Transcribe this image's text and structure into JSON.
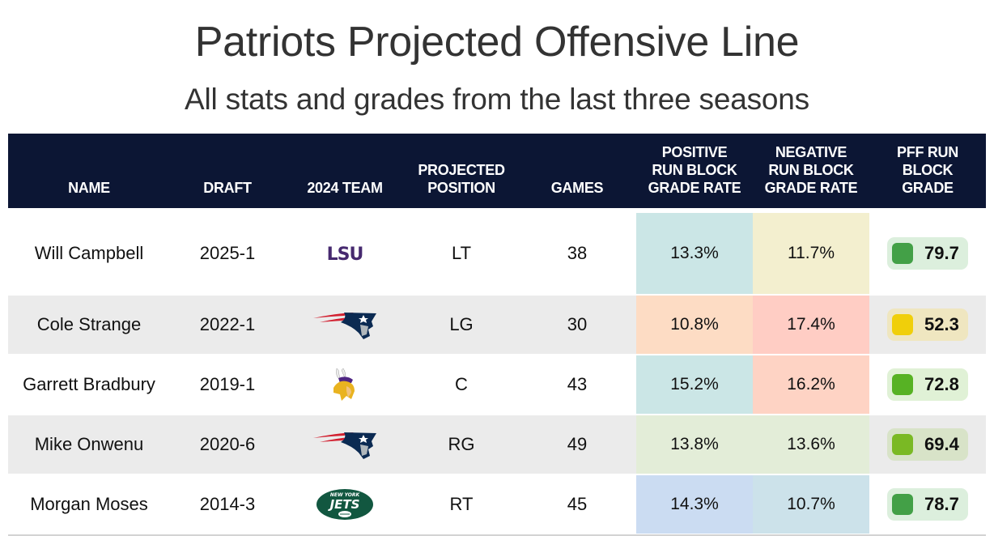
{
  "header": {
    "title": "Patriots Projected Offensive Line",
    "subtitle": "All stats and grades from the last three seasons"
  },
  "table": {
    "columns": [
      {
        "key": "name",
        "label": "NAME"
      },
      {
        "key": "draft",
        "label": "DRAFT"
      },
      {
        "key": "team",
        "label": "2024 TEAM"
      },
      {
        "key": "position",
        "label": "PROJECTED POSITION"
      },
      {
        "key": "games",
        "label": "GAMES"
      },
      {
        "key": "pos_rate",
        "label": "POSITIVE RUN BLOCK GRADE RATE"
      },
      {
        "key": "neg_rate",
        "label": "NEGATIVE RUN BLOCK GRADE RATE"
      },
      {
        "key": "grade",
        "label": "PFF RUN BLOCK GRADE"
      }
    ],
    "header_lines": {
      "name": [
        "NAME"
      ],
      "draft": [
        "DRAFT"
      ],
      "team": [
        "2024 TEAM"
      ],
      "position": [
        "PROJECTED",
        "POSITION"
      ],
      "games": [
        "GAMES"
      ],
      "pos_rate": [
        "POSITIVE",
        "RUN BLOCK",
        "GRADE RATE"
      ],
      "neg_rate": [
        "NEGATIVE",
        "RUN BLOCK",
        "GRADE RATE"
      ],
      "grade": [
        "PFF RUN",
        "BLOCK",
        "GRADE"
      ]
    },
    "rows": [
      {
        "name": "Will Campbell",
        "draft": "2025-1",
        "team": "LSU",
        "team_logo": "lsu-logo",
        "position": "LT",
        "games": "38",
        "pos_rate": "13.3%",
        "pos_rate_color": "#cbe6e6",
        "neg_rate": "11.7%",
        "neg_rate_color": "#f3efcf",
        "grade": "79.7",
        "grade_dot_color": "#43a047",
        "grade_bg_color": "#dcefdd"
      },
      {
        "name": "Cole Strange",
        "draft": "2022-1",
        "team": "New England Patriots",
        "team_logo": "patriots-logo",
        "position": "LG",
        "games": "30",
        "pos_rate": "10.8%",
        "pos_rate_color": "#fddcc4",
        "neg_rate": "17.4%",
        "neg_rate_color": "#ffcdc4",
        "grade": "52.3",
        "grade_dot_color": "#f0cf0a",
        "grade_bg_color": "#efe6c0"
      },
      {
        "name": "Garrett Bradbury",
        "draft": "2019-1",
        "team": "Minnesota Vikings",
        "team_logo": "vikings-logo",
        "position": "C",
        "games": "43",
        "pos_rate": "15.2%",
        "pos_rate_color": "#cbe6e6",
        "neg_rate": "16.2%",
        "neg_rate_color": "#fed3c4",
        "grade": "72.8",
        "grade_dot_color": "#57b224",
        "grade_bg_color": "#e0f1d6"
      },
      {
        "name": "Mike Onwenu",
        "draft": "2020-6",
        "team": "New England Patriots",
        "team_logo": "patriots-logo",
        "position": "RG",
        "games": "49",
        "pos_rate": "13.8%",
        "pos_rate_color": "#e3edd8",
        "neg_rate": "13.6%",
        "neg_rate_color": "#e3edd8",
        "grade": "69.4",
        "grade_dot_color": "#7ab924",
        "grade_bg_color": "#d8e3c8"
      },
      {
        "name": "Morgan Moses",
        "draft": "2014-3",
        "team": "New York Jets",
        "team_logo": "jets-logo",
        "position": "RT",
        "games": "45",
        "pos_rate": "14.3%",
        "pos_rate_color": "#cbdcf2",
        "neg_rate": "10.7%",
        "neg_rate_color": "#cce2ea",
        "grade": "78.7",
        "grade_dot_color": "#43a047",
        "grade_bg_color": "#dcefdd"
      }
    ]
  },
  "logos": {
    "lsu_text": "LSU",
    "jets_top": "NEW YORK",
    "jets_main": "JETS"
  },
  "colors": {
    "header_bg": "#0c1634",
    "alt_row_bg": "#ebebeb",
    "lsu_purple": "#46296f",
    "patriots_navy": "#0b2a52",
    "patriots_red": "#d22030",
    "jets_green": "#125740",
    "vikings_gold": "#e9b320"
  }
}
